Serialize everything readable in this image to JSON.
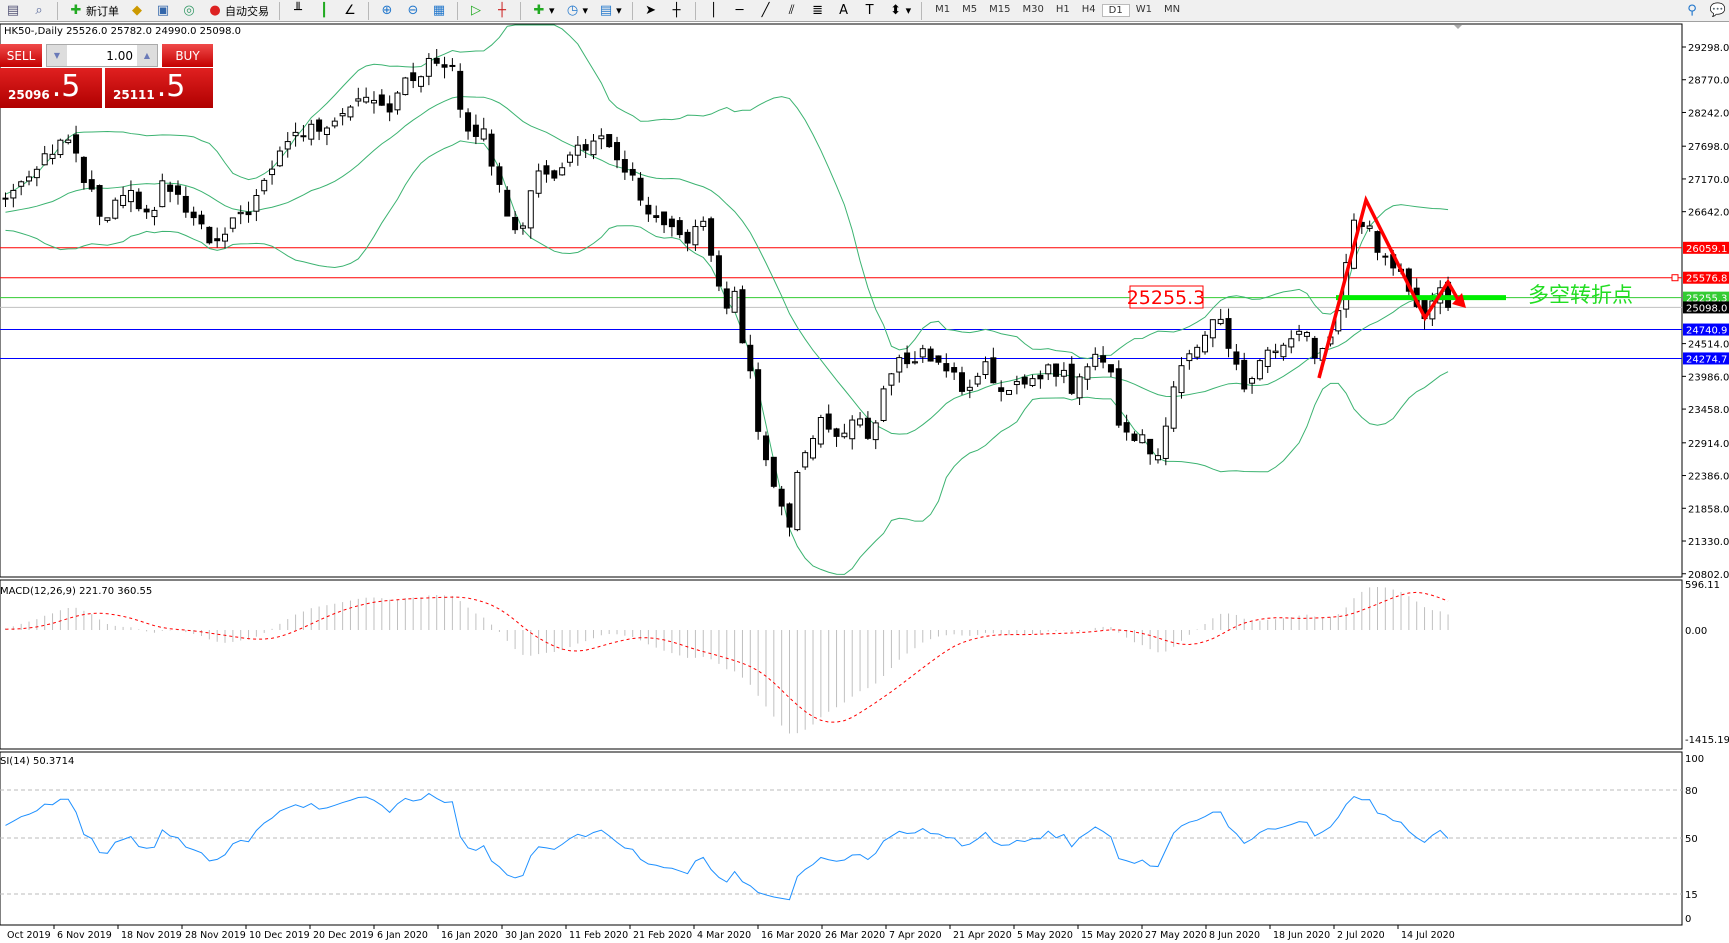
{
  "toolbar": {
    "new_order": "新订单",
    "auto_trading": "自动交易",
    "timeframes": [
      "M1",
      "M5",
      "M15",
      "M30",
      "H1",
      "H4",
      "D1",
      "W1",
      "MN"
    ],
    "active_timeframe": "D1"
  },
  "chart_header": "HK50-,Daily  25526.0 25782.0 24990.0 25098.0",
  "trade_panel": {
    "sell_label": "SELL",
    "buy_label": "BUY",
    "lot": "1.00",
    "sell_price_main": "25096",
    "sell_price_frac": ".5",
    "buy_price_main": "25111",
    "buy_price_frac": ".5",
    "color": "#d00000"
  },
  "annotation": {
    "label_box": "25255.3",
    "text": "多空转折点",
    "text_color": "#22dd22",
    "arrow_color": "#ff0000"
  },
  "macd_label": "MACD(12,26,9) 221.70 360.55",
  "rsi_label": "SI(14) 50.3714",
  "chart_data": {
    "type": "candlestick",
    "symbol": "HK50-",
    "timeframe": "Daily",
    "price_axis_labels": [
      "29298.0",
      "28770.0",
      "28242.0",
      "27698.0",
      "27170.0",
      "26642.0",
      "24514.0",
      "23986.0",
      "23458.0",
      "22914.0",
      "22386.0",
      "21858.0",
      "21330.0",
      "20802.0"
    ],
    "price_ylim": [
      20802,
      29298
    ],
    "horizontal_lines": [
      {
        "price": 26059.1,
        "label": "26059.1",
        "color": "#ff0000"
      },
      {
        "price": 25576.8,
        "label": "25576.8",
        "color": "#ff0000"
      },
      {
        "price": 25255.3,
        "label": "25255.3",
        "color": "#33cc33"
      },
      {
        "price": 25098.0,
        "label": "25098.0",
        "color": "#000000"
      },
      {
        "price": 24740.9,
        "label": "24740.9",
        "color": "#0000ff"
      },
      {
        "price": 24274.7,
        "label": "24274.7",
        "color": "#0000ff"
      }
    ],
    "approx_closes": [
      26854,
      27565,
      27832,
      27210,
      26409,
      27032,
      26409,
      27121,
      26498,
      26053,
      26498,
      27032,
      27832,
      28010,
      28277,
      28633,
      28277,
      28633,
      28988,
      29077,
      28099,
      27832,
      26854,
      26320,
      27299,
      27299,
      27743,
      27743,
      27299,
      26765,
      26320,
      26231,
      26409,
      25075,
      25342,
      24007,
      22940,
      22050,
      21517,
      22584,
      23385,
      22940,
      23296,
      23029,
      24007,
      24274,
      24363,
      24096,
      23741,
      24274,
      23563,
      23919,
      24096,
      24096,
      23741,
      24274,
      24363,
      23118,
      23029,
      22762,
      23474,
      24274,
      24719,
      24986,
      24363,
      23741,
      24363,
      24363,
      24719,
      24274,
      24719,
      25787,
      26587,
      26231,
      25787,
      25520,
      24986,
      25520,
      25098
    ],
    "date_labels": [
      "Oct 2019",
      "6 Nov 2019",
      "18 Nov 2019",
      "28 Nov 2019",
      "10 Dec 2019",
      "20 Dec 2019",
      "6 Jan 2020",
      "16 Jan 2020",
      "30 Jan 2020",
      "11 Feb 2020",
      "21 Feb 2020",
      "4 Mar 2020",
      "16 Mar 2020",
      "26 Mar 2020",
      "7 Apr 2020",
      "21 Apr 2020",
      "5 May 2020",
      "15 May 2020",
      "27 May 2020",
      "8 Jun 2020",
      "18 Jun 2020",
      "2 Jul 2020",
      "14 Jul 2020"
    ],
    "indicators": {
      "bollinger": {
        "color": "#3cb371"
      },
      "macd": {
        "params": [
          12,
          26,
          9
        ],
        "main": 221.7,
        "signal": 360.55,
        "axis_labels": [
          "596.11",
          "0.00",
          "-1415.19"
        ],
        "ylim": [
          -1415.19,
          596.11
        ],
        "hist_color": "#c0c0c0",
        "signal_color": "#ff0000"
      },
      "rsi": {
        "period": 14,
        "value": 50.3714,
        "axis_labels": [
          "100",
          "80",
          "50",
          "15",
          "0"
        ],
        "levels": [
          80,
          50,
          15
        ],
        "color": "#1e90ff"
      }
    }
  }
}
